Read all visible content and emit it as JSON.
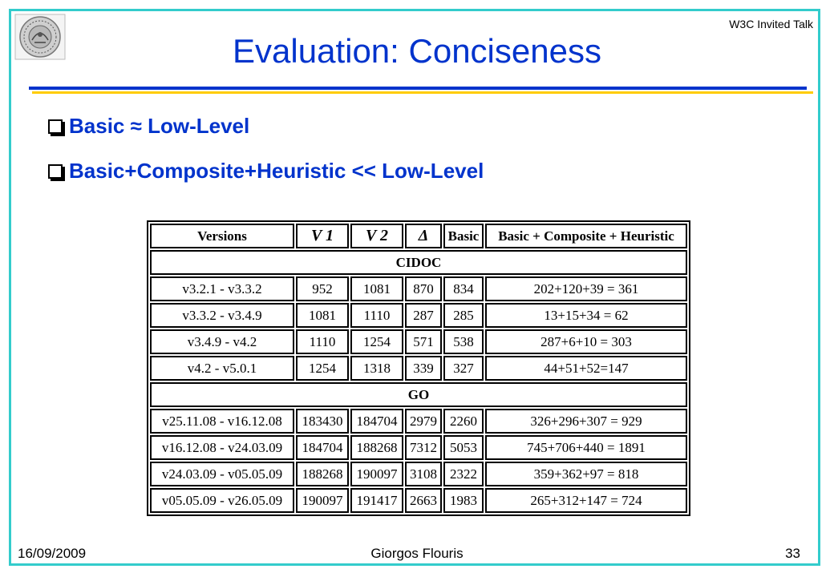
{
  "header": {
    "corner_note": "W3C Invited Talk",
    "title": "Evaluation: Conciseness"
  },
  "bullets": [
    "Basic ≈ Low-Level",
    "Basic+Composite+Heuristic << Low-Level"
  ],
  "table": {
    "headers": [
      "Versions",
      "V 1",
      "V 2",
      "Δ",
      "Basic",
      "Basic + Composite + Heuristic"
    ],
    "sections": [
      {
        "name": "CIDOC",
        "rows": [
          [
            "v3.2.1 - v3.3.2",
            "952",
            "1081",
            "870",
            "834",
            "202+120+39 = 361"
          ],
          [
            "v3.3.2 - v3.4.9",
            "1081",
            "1110",
            "287",
            "285",
            "13+15+34 = 62"
          ],
          [
            "v3.4.9 - v4.2",
            "1110",
            "1254",
            "571",
            "538",
            "287+6+10 = 303"
          ],
          [
            "v4.2 - v5.0.1",
            "1254",
            "1318",
            "339",
            "327",
            "44+51+52=147"
          ]
        ]
      },
      {
        "name": "GO",
        "rows": [
          [
            "v25.11.08 - v16.12.08",
            "183430",
            "184704",
            "2979",
            "2260",
            "326+296+307 = 929"
          ],
          [
            "v16.12.08 - v24.03.09",
            "184704",
            "188268",
            "7312",
            "5053",
            "745+706+440 = 1891"
          ],
          [
            "v24.03.09 - v05.05.09",
            "188268",
            "190097",
            "3108",
            "2322",
            "359+362+97 = 818"
          ],
          [
            "v05.05.09 - v26.05.09",
            "190097",
            "191417",
            "2663",
            "1983",
            "265+312+147 = 724"
          ]
        ]
      }
    ]
  },
  "footer": {
    "date": "16/09/2009",
    "author": "Giorgos Flouris",
    "page": "33"
  }
}
